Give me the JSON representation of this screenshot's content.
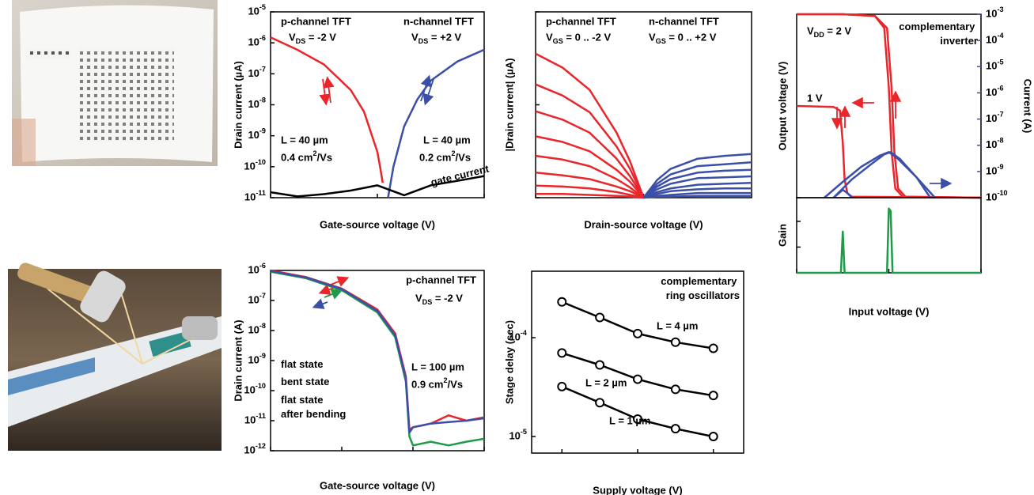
{
  "chart_data": [
    {
      "type": "line",
      "ylog": true,
      "xlim": [
        -2,
        2
      ],
      "xticks": [
        -2,
        0,
        2
      ],
      "ylim": [
        1e-11,
        1e-05
      ],
      "yticks": [
        {
          "value": 1e-11,
          "label": "10^{-11}"
        },
        {
          "value": 1e-10,
          "label": "10^{-10}"
        },
        {
          "value": 1e-09,
          "label": "10^{-9}"
        },
        {
          "value": 1e-08,
          "label": "10^{-8}"
        },
        {
          "value": 1e-07,
          "label": "10^{-7}"
        },
        {
          "value": 1e-06,
          "label": "10^{-6}"
        },
        {
          "value": 1e-05,
          "label": "10^{-5}"
        }
      ],
      "x_label": "Gate-source voltage (V)",
      "y_label": "Drain current (µA)",
      "series": [
        {
          "color": "#e8262b",
          "x": [
            -2,
            -1.5,
            -1,
            -0.5,
            -0.25,
            0,
            0.05,
            0.1
          ],
          "values": [
            1.5e-06,
            6e-07,
            2e-07,
            3e-08,
            6e-09,
            3e-10,
            1e-10,
            3e-11
          ]
        },
        {
          "color": "#3b4fa8",
          "x": [
            0.2,
            0.3,
            0.5,
            0.75,
            1,
            1.5,
            2
          ],
          "values": [
            1e-11,
            1e-10,
            2e-09,
            1.5e-08,
            6e-08,
            2.5e-07,
            6e-07
          ]
        },
        {
          "color": "#000000",
          "x": [
            -2,
            -1.5,
            -1,
            -0.5,
            0,
            0.5,
            1,
            1.5,
            2
          ],
          "values": [
            1.5e-11,
            1.1e-11,
            1.3e-11,
            1.7e-11,
            2.5e-11,
            1.2e-11,
            2.5e-11,
            3.5e-11,
            5e-11
          ]
        }
      ],
      "annotations": [
        {
          "text": "p-channel TFT",
          "color": "#e8262b"
        },
        {
          "text": "V_{DS} = -2 V",
          "color": "#e8262b"
        },
        {
          "text": "n-channel TFT",
          "color": "#3b4fa8"
        },
        {
          "text": "V_{DS} = +2 V",
          "color": "#3b4fa8"
        },
        {
          "text": "L = 40 µm",
          "color": "#e8262b"
        },
        {
          "text": "0.4 cm^{2}/Vs",
          "color": "#e8262b"
        },
        {
          "text": "L = 40 µm",
          "color": "#3b4fa8"
        },
        {
          "text": "0.2 cm^{2}/Vs",
          "color": "#3b4fa8"
        },
        {
          "text": "gate current",
          "color": "#000000"
        }
      ]
    },
    {
      "type": "line",
      "xlim": [
        -2,
        2
      ],
      "xticks": [
        -2,
        0,
        2
      ],
      "ylim": [
        0,
        2
      ],
      "yticks": [
        0,
        1,
        2
      ],
      "x_label": "Drain-source voltage (V)",
      "y_label": "|Drain current| (µA)",
      "series": [
        {
          "color": "#e8262b",
          "x": [
            -2,
            -1.5,
            -1,
            -0.5,
            -0.25,
            0
          ],
          "values": [
            1.55,
            1.4,
            1.16,
            0.7,
            0.39,
            0
          ]
        },
        {
          "color": "#e8262b",
          "x": [
            -2,
            -1.5,
            -1,
            -0.5,
            -0.25,
            0
          ],
          "values": [
            1.22,
            1.1,
            0.92,
            0.55,
            0.31,
            0
          ]
        },
        {
          "color": "#e8262b",
          "x": [
            -2,
            -1.5,
            -1,
            -0.5,
            -0.25,
            0
          ],
          "values": [
            0.93,
            0.84,
            0.7,
            0.42,
            0.23,
            0
          ]
        },
        {
          "color": "#e8262b",
          "x": [
            -2,
            -1.5,
            -1,
            -0.5,
            -0.25,
            0
          ],
          "values": [
            0.66,
            0.6,
            0.5,
            0.3,
            0.17,
            0
          ]
        },
        {
          "color": "#e8262b",
          "x": [
            -2,
            -1.5,
            -1,
            -0.5,
            -0.25,
            0
          ],
          "values": [
            0.45,
            0.41,
            0.34,
            0.2,
            0.11,
            0
          ]
        },
        {
          "color": "#e8262b",
          "x": [
            -2,
            -1.5,
            -1,
            -0.5,
            -0.25,
            0
          ],
          "values": [
            0.27,
            0.24,
            0.2,
            0.12,
            0.07,
            0
          ]
        },
        {
          "color": "#e8262b",
          "x": [
            -2,
            -1.5,
            -1,
            -0.5,
            -0.25,
            0
          ],
          "values": [
            0.13,
            0.12,
            0.1,
            0.06,
            0.03,
            0
          ]
        },
        {
          "color": "#e8262b",
          "x": [
            -2,
            -1.5,
            -1,
            -0.5,
            -0.25,
            0
          ],
          "values": [
            0.04,
            0.04,
            0.03,
            0.02,
            0.01,
            0
          ]
        },
        {
          "color": "#3b4fa8",
          "x": [
            0,
            0.25,
            0.5,
            1,
            1.5,
            2
          ],
          "values": [
            0,
            0.19,
            0.31,
            0.42,
            0.45,
            0.47
          ]
        },
        {
          "color": "#3b4fa8",
          "x": [
            0,
            0.25,
            0.5,
            1,
            1.5,
            2
          ],
          "values": [
            0,
            0.15,
            0.25,
            0.34,
            0.36,
            0.38
          ]
        },
        {
          "color": "#3b4fa8",
          "x": [
            0,
            0.25,
            0.5,
            1,
            1.5,
            2
          ],
          "values": [
            0,
            0.12,
            0.2,
            0.27,
            0.29,
            0.3
          ]
        },
        {
          "color": "#3b4fa8",
          "x": [
            0,
            0.25,
            0.5,
            1,
            1.5,
            2
          ],
          "values": [
            0,
            0.09,
            0.15,
            0.21,
            0.22,
            0.23
          ]
        },
        {
          "color": "#3b4fa8",
          "x": [
            0,
            0.25,
            0.5,
            1,
            1.5,
            2
          ],
          "values": [
            0,
            0.06,
            0.1,
            0.14,
            0.15,
            0.16
          ]
        },
        {
          "color": "#3b4fa8",
          "x": [
            0,
            0.25,
            0.5,
            1,
            1.5,
            2
          ],
          "values": [
            0,
            0.04,
            0.07,
            0.09,
            0.1,
            0.1
          ]
        },
        {
          "color": "#3b4fa8",
          "x": [
            0,
            0.25,
            0.5,
            1,
            1.5,
            2
          ],
          "values": [
            0,
            0.02,
            0.03,
            0.05,
            0.05,
            0.05
          ]
        },
        {
          "color": "#3b4fa8",
          "x": [
            0,
            0.25,
            0.5,
            1,
            1.5,
            2
          ],
          "values": [
            0,
            0.01,
            0.01,
            0.02,
            0.02,
            0.02
          ]
        }
      ],
      "annotations": [
        {
          "text": "p-channel TFT",
          "color": "#e8262b"
        },
        {
          "text": "V_{GS} = 0 .. -2 V",
          "color": "#e8262b"
        },
        {
          "text": "n-channel TFT",
          "color": "#3b4fa8"
        },
        {
          "text": "V_{GS} = 0 .. +2 V",
          "color": "#3b4fa8"
        }
      ]
    },
    {
      "type": "line",
      "xlim": [
        0,
        2
      ],
      "ylim": [
        0,
        2
      ],
      "yticks": [
        0,
        1,
        2
      ],
      "y2log": true,
      "y2lim": [
        1e-10,
        0.001
      ],
      "y2ticks": [
        {
          "value": 1e-10,
          "label": "10^{-10}"
        },
        {
          "value": 1e-09,
          "label": "10^{-9}"
        },
        {
          "value": 1e-08,
          "label": "10^{-8}"
        },
        {
          "value": 1e-07,
          "label": "10^{-7}"
        },
        {
          "value": 1e-06,
          "label": "10^{-6}"
        },
        {
          "value": 1e-05,
          "label": "10^{-5}"
        },
        {
          "value": 0.0001,
          "label": "10^{-4}"
        },
        {
          "value": 0.001,
          "label": "10^{-3}"
        }
      ],
      "y_label": "Output voltage (V)",
      "y_label_color": "#e8262b",
      "y2_label": "Current (A)",
      "y2_label_color": "#3b4fa8",
      "series": [
        {
          "color": "#e8262b",
          "x": [
            0,
            0.5,
            0.85,
            0.95,
            1.0,
            1.03,
            1.07,
            1.15,
            2
          ],
          "values": [
            2,
            2,
            1.98,
            1.85,
            1.2,
            0.5,
            0.1,
            0.01,
            0
          ]
        },
        {
          "color": "#e8262b",
          "x": [
            0,
            0.5,
            0.85,
            0.98,
            1.03,
            1.06,
            1.1,
            1.18,
            2
          ],
          "values": [
            2,
            2,
            1.98,
            1.85,
            1.2,
            0.5,
            0.1,
            0.01,
            0
          ]
        },
        {
          "color": "#e8262b",
          "x": [
            0,
            0.4,
            0.47,
            0.5,
            0.52,
            0.55,
            0.6,
            2
          ],
          "values": [
            1,
            0.99,
            0.95,
            0.6,
            0.2,
            0.05,
            0.01,
            0
          ]
        },
        {
          "color": "#3b4fa8",
          "axis": "y2",
          "x": [
            0.3,
            0.5,
            0.7,
            0.9,
            1.0,
            1.1,
            1.3,
            1.5
          ],
          "values": [
            1e-10,
            4e-10,
            1.5e-09,
            4e-09,
            5.5e-09,
            3e-09,
            6e-10,
            1e-10
          ]
        },
        {
          "color": "#3b4fa8",
          "axis": "y2",
          "x": [
            0.4,
            0.6,
            0.8,
            0.95,
            1.02,
            1.12,
            1.3,
            1.45
          ],
          "values": [
            1e-10,
            5e-10,
            1.8e-09,
            4.5e-09,
            5.5e-09,
            3e-09,
            6e-10,
            1e-10
          ]
        },
        {
          "color": "#3b4fa8",
          "axis": "y2",
          "x": [
            0.4,
            0.5,
            0.55,
            0.6
          ],
          "values": [
            1e-10,
            2e-10,
            1.5e-10,
            1e-10
          ]
        }
      ],
      "annotations": [
        {
          "text": "V_{DD} = 2 V",
          "color": "#000000"
        },
        {
          "text": "complementary inverter",
          "color": "#000000"
        },
        {
          "text": "1 V",
          "color": "#000000"
        }
      ]
    },
    {
      "type": "line",
      "xlim": [
        0,
        2
      ],
      "xticks": [
        0,
        1,
        2
      ],
      "ylim": [
        0,
        146
      ],
      "yticks": [
        0,
        50,
        100
      ],
      "x_label": "Input voltage (V)",
      "y_label": "Gain",
      "y_label_color": "#1f9a48",
      "series": [
        {
          "color": "#1f9a48",
          "x": [
            0,
            0.48,
            0.5,
            0.52,
            0.98,
            1.0,
            1.02,
            1.04,
            2
          ],
          "values": [
            0,
            0,
            80,
            0,
            0,
            125,
            120,
            0,
            0
          ]
        }
      ]
    },
    {
      "type": "line",
      "ylog": true,
      "xlim": [
        -3,
        0
      ],
      "xticks": [
        -3,
        -2,
        -1,
        0
      ],
      "ylim": [
        1e-12,
        1e-06
      ],
      "yticks": [
        {
          "value": 1e-12,
          "label": "10^{-12}"
        },
        {
          "value": 1e-11,
          "label": "10^{-11}"
        },
        {
          "value": 1e-10,
          "label": "10^{-10}"
        },
        {
          "value": 1e-09,
          "label": "10^{-9}"
        },
        {
          "value": 1e-08,
          "label": "10^{-8}"
        },
        {
          "value": 1e-07,
          "label": "10^{-7}"
        },
        {
          "value": 1e-06,
          "label": "10^{-6}"
        }
      ],
      "x_label": "Gate-source voltage (V)",
      "y_label": "Drain current (A)",
      "series": [
        {
          "name": "flat state",
          "color": "#e8262b",
          "x": [
            -3,
            -2.5,
            -2,
            -1.5,
            -1.25,
            -1.1,
            -1.05,
            -1,
            -0.75,
            -0.5,
            -0.25,
            0
          ],
          "values": [
            1e-06,
            6e-07,
            2.5e-07,
            5e-08,
            8e-09,
            3e-10,
            5e-12,
            6e-12,
            8e-12,
            1.5e-11,
            1e-11,
            1.3e-11
          ]
        },
        {
          "name": "bent state",
          "color": "#1f9a48",
          "x": [
            -3,
            -2.5,
            -2,
            -1.5,
            -1.25,
            -1.1,
            -1.05,
            -1,
            -0.75,
            -0.5,
            -0.25,
            0
          ],
          "values": [
            9e-07,
            5.5e-07,
            2.2e-07,
            4e-08,
            6e-09,
            2e-10,
            3e-12,
            1.5e-12,
            2e-12,
            1.5e-12,
            2e-12,
            2.5e-12
          ]
        },
        {
          "name": "flat state after bending",
          "color": "#3b4fa8",
          "x": [
            -3,
            -2.5,
            -2,
            -1.5,
            -1.25,
            -1.1,
            -1.05,
            -1,
            -0.75,
            -0.5,
            -0.25,
            0
          ],
          "values": [
            9.5e-07,
            5.8e-07,
            2.4e-07,
            4.5e-08,
            7e-09,
            2.5e-10,
            4e-12,
            6e-12,
            8e-12,
            9e-12,
            1e-11,
            1.2e-11
          ]
        }
      ],
      "annotations": [
        {
          "text": "p-channel TFT",
          "color": "#e8262b"
        },
        {
          "text": "V_{DS} = -2 V",
          "color": "#e8262b"
        },
        {
          "text": "L = 100 µm",
          "color": "#e8262b"
        },
        {
          "text": "0.9 cm^{2}/Vs",
          "color": "#e8262b"
        }
      ]
    },
    {
      "type": "line",
      "ylog": true,
      "markers": true,
      "xlim": [
        1.6,
        4.4
      ],
      "xticks": [
        2,
        3,
        4
      ],
      "ylim": [
        6.8e-06,
        0.00047
      ],
      "yticks": [
        {
          "value": 1e-05,
          "label": "10^{-5}"
        },
        {
          "value": 0.0001,
          "label": "10^{-4}"
        }
      ],
      "x_label": "Supply voltage (V)",
      "y_label": "Stage delay (sec)",
      "series": [
        {
          "name": "L = 4 µm",
          "color": "#000000",
          "x": [
            2,
            2.5,
            3,
            3.5,
            4
          ],
          "values": [
            0.00023,
            0.00016,
            0.00011,
            9e-05,
            7.8e-05
          ]
        },
        {
          "name": "L = 2 µm",
          "color": "#000000",
          "x": [
            2,
            2.5,
            3,
            3.5,
            4
          ],
          "values": [
            7e-05,
            5.3e-05,
            3.8e-05,
            3e-05,
            2.6e-05
          ]
        },
        {
          "name": "L = 1 µm",
          "color": "#000000",
          "x": [
            2,
            2.5,
            3,
            3.5,
            4
          ],
          "values": [
            3.2e-05,
            2.2e-05,
            1.5e-05,
            1.2e-05,
            1e-05
          ]
        }
      ],
      "annotations": [
        {
          "text": "complementary ring oscillators",
          "color": "#000000"
        }
      ]
    }
  ]
}
